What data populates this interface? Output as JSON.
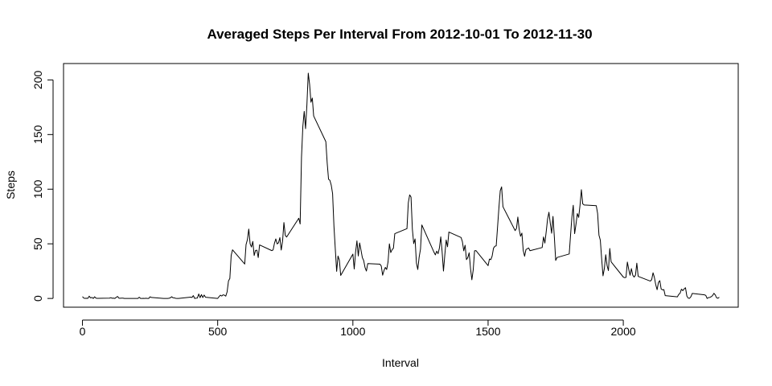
{
  "chart_data": {
    "type": "line",
    "title": "Averaged Steps Per Interval From  2012-10-01  To  2012-11-30",
    "xlabel": "Interval",
    "ylabel": "Steps",
    "xlim": [
      -70,
      2425
    ],
    "ylim": [
      -8,
      215
    ],
    "xticks": [
      0,
      500,
      1000,
      1500,
      2000
    ],
    "yticks": [
      0,
      50,
      100,
      150,
      200
    ],
    "grid": false,
    "series": [
      {
        "color": "#000000",
        "points": [
          [
            0,
            1.7
          ],
          [
            5,
            0.3
          ],
          [
            10,
            0.1
          ],
          [
            15,
            0.2
          ],
          [
            20,
            0.1
          ],
          [
            25,
            2.1
          ],
          [
            30,
            0.5
          ],
          [
            35,
            0.9
          ],
          [
            40,
            0
          ],
          [
            45,
            1.5
          ],
          [
            50,
            0.3
          ],
          [
            55,
            0.1
          ],
          [
            100,
            0.3
          ],
          [
            105,
            0.7
          ],
          [
            110,
            0.2
          ],
          [
            115,
            0.3
          ],
          [
            120,
            0
          ],
          [
            125,
            1.1
          ],
          [
            130,
            1.8
          ],
          [
            135,
            0.2
          ],
          [
            140,
            0.2
          ],
          [
            145,
            0.3
          ],
          [
            150,
            0.3
          ],
          [
            155,
            0
          ],
          [
            200,
            0
          ],
          [
            205,
            0
          ],
          [
            210,
            1.1
          ],
          [
            215,
            0
          ],
          [
            220,
            0
          ],
          [
            225,
            0.1
          ],
          [
            230,
            0
          ],
          [
            235,
            0.2
          ],
          [
            240,
            0
          ],
          [
            245,
            0
          ],
          [
            250,
            1.5
          ],
          [
            255,
            0.9
          ],
          [
            300,
            0
          ],
          [
            305,
            0
          ],
          [
            310,
            0
          ],
          [
            315,
            0
          ],
          [
            320,
            0.2
          ],
          [
            325,
            0.6
          ],
          [
            330,
            1.6
          ],
          [
            335,
            0.6
          ],
          [
            340,
            0.5
          ],
          [
            345,
            0.1
          ],
          [
            350,
            0
          ],
          [
            355,
            0
          ],
          [
            400,
            1.2
          ],
          [
            405,
            0.9
          ],
          [
            410,
            2.6
          ],
          [
            415,
            0
          ],
          [
            420,
            0.3
          ],
          [
            425,
            0.4
          ],
          [
            430,
            4.1
          ],
          [
            435,
            0.7
          ],
          [
            440,
            3.5
          ],
          [
            445,
            0.8
          ],
          [
            450,
            3.1
          ],
          [
            455,
            1.1
          ],
          [
            500,
            0
          ],
          [
            505,
            1.6
          ],
          [
            510,
            3
          ],
          [
            515,
            2.2
          ],
          [
            520,
            3.3
          ],
          [
            525,
            3
          ],
          [
            530,
            2.1
          ],
          [
            535,
            6.1
          ],
          [
            540,
            16
          ],
          [
            545,
            18.3
          ],
          [
            550,
            39.5
          ],
          [
            555,
            44.5
          ],
          [
            600,
            31.5
          ],
          [
            605,
            49.3
          ],
          [
            610,
            53.8
          ],
          [
            615,
            63.5
          ],
          [
            620,
            50
          ],
          [
            625,
            47.1
          ],
          [
            630,
            52.2
          ],
          [
            635,
            39.3
          ],
          [
            640,
            44
          ],
          [
            645,
            44.2
          ],
          [
            650,
            37.4
          ],
          [
            655,
            49
          ],
          [
            700,
            43.8
          ],
          [
            705,
            44.4
          ],
          [
            710,
            50.5
          ],
          [
            715,
            54.5
          ],
          [
            720,
            49.9
          ],
          [
            725,
            51
          ],
          [
            730,
            55.7
          ],
          [
            735,
            44.3
          ],
          [
            740,
            52.3
          ],
          [
            745,
            69.5
          ],
          [
            750,
            57.8
          ],
          [
            755,
            56.2
          ],
          [
            800,
            73.4
          ],
          [
            805,
            68.2
          ],
          [
            810,
            129.4
          ],
          [
            815,
            157.5
          ],
          [
            820,
            171.2
          ],
          [
            825,
            155.4
          ],
          [
            830,
            177.3
          ],
          [
            835,
            206.2
          ],
          [
            840,
            195.9
          ],
          [
            845,
            179.6
          ],
          [
            850,
            183.4
          ],
          [
            855,
            167
          ],
          [
            900,
            143.5
          ],
          [
            905,
            124
          ],
          [
            910,
            109.1
          ],
          [
            915,
            108.1
          ],
          [
            920,
            103.7
          ],
          [
            925,
            95.9
          ],
          [
            930,
            66.2
          ],
          [
            935,
            45.2
          ],
          [
            940,
            24.8
          ],
          [
            945,
            38.8
          ],
          [
            950,
            35
          ],
          [
            955,
            21.1
          ],
          [
            1000,
            40.6
          ],
          [
            1005,
            27
          ],
          [
            1010,
            42.4
          ],
          [
            1015,
            52.7
          ],
          [
            1020,
            38.9
          ],
          [
            1025,
            50.8
          ],
          [
            1030,
            44.3
          ],
          [
            1035,
            37.4
          ],
          [
            1040,
            34.7
          ],
          [
            1045,
            28.3
          ],
          [
            1050,
            25.1
          ],
          [
            1055,
            31.9
          ],
          [
            1100,
            31.4
          ],
          [
            1105,
            29.7
          ],
          [
            1110,
            21.3
          ],
          [
            1115,
            25.5
          ],
          [
            1120,
            28.4
          ],
          [
            1125,
            26.5
          ],
          [
            1130,
            33.4
          ],
          [
            1135,
            50
          ],
          [
            1140,
            42
          ],
          [
            1145,
            44.6
          ],
          [
            1150,
            46
          ],
          [
            1155,
            59.3
          ],
          [
            1200,
            63.9
          ],
          [
            1205,
            87.6
          ],
          [
            1210,
            94.8
          ],
          [
            1215,
            92.8
          ],
          [
            1220,
            63.4
          ],
          [
            1225,
            50.2
          ],
          [
            1230,
            54.5
          ],
          [
            1235,
            32.4
          ],
          [
            1240,
            26.5
          ],
          [
            1245,
            37.7
          ],
          [
            1250,
            45.1
          ],
          [
            1255,
            67.3
          ],
          [
            1300,
            42.3
          ],
          [
            1305,
            39.9
          ],
          [
            1310,
            43.3
          ],
          [
            1315,
            40.98
          ],
          [
            1320,
            46.2
          ],
          [
            1325,
            56.4
          ],
          [
            1330,
            42.8
          ],
          [
            1335,
            25.1
          ],
          [
            1340,
            39.97
          ],
          [
            1345,
            53.5
          ],
          [
            1350,
            47.3
          ],
          [
            1355,
            60.8
          ],
          [
            1400,
            55.8
          ],
          [
            1405,
            51.96
          ],
          [
            1410,
            43.6
          ],
          [
            1415,
            48.7
          ],
          [
            1420,
            35.5
          ],
          [
            1425,
            37.5
          ],
          [
            1430,
            41.8
          ],
          [
            1435,
            27.5
          ],
          [
            1440,
            17.1
          ],
          [
            1445,
            26.1
          ],
          [
            1450,
            43.6
          ],
          [
            1455,
            43.8
          ],
          [
            1500,
            30
          ],
          [
            1505,
            36.1
          ],
          [
            1510,
            35.5
          ],
          [
            1515,
            38.8
          ],
          [
            1520,
            45.96
          ],
          [
            1525,
            47.8
          ],
          [
            1530,
            48.1
          ],
          [
            1535,
            65.3
          ],
          [
            1540,
            82.9
          ],
          [
            1545,
            98.7
          ],
          [
            1550,
            102.1
          ],
          [
            1555,
            83.96
          ],
          [
            1600,
            62.1
          ],
          [
            1605,
            64.1
          ],
          [
            1610,
            74.5
          ],
          [
            1615,
            63.2
          ],
          [
            1620,
            56.9
          ],
          [
            1625,
            59.8
          ],
          [
            1630,
            43.9
          ],
          [
            1635,
            38.6
          ],
          [
            1640,
            44.7
          ],
          [
            1645,
            45.5
          ],
          [
            1650,
            46.2
          ],
          [
            1655,
            43.7
          ],
          [
            1700,
            46.6
          ],
          [
            1705,
            56.3
          ],
          [
            1710,
            50.7
          ],
          [
            1715,
            61.2
          ],
          [
            1720,
            72.7
          ],
          [
            1725,
            78.9
          ],
          [
            1730,
            68.9
          ],
          [
            1735,
            59.7
          ],
          [
            1740,
            75.1
          ],
          [
            1745,
            56.5
          ],
          [
            1750,
            34.8
          ],
          [
            1755,
            37.5
          ],
          [
            1800,
            40.7
          ],
          [
            1805,
            58
          ],
          [
            1810,
            74.7
          ],
          [
            1815,
            85.3
          ],
          [
            1820,
            59.3
          ],
          [
            1825,
            67.8
          ],
          [
            1830,
            77.7
          ],
          [
            1835,
            74.2
          ],
          [
            1840,
            85.3
          ],
          [
            1845,
            99.5
          ],
          [
            1850,
            86.6
          ],
          [
            1855,
            85.6
          ],
          [
            1900,
            84.9
          ],
          [
            1905,
            77.8
          ],
          [
            1910,
            58
          ],
          [
            1915,
            53.4
          ],
          [
            1920,
            36.3
          ],
          [
            1925,
            20.7
          ],
          [
            1930,
            27.4
          ],
          [
            1935,
            40
          ],
          [
            1940,
            30.2
          ],
          [
            1945,
            25.5
          ],
          [
            1950,
            45.7
          ],
          [
            1955,
            33.5
          ],
          [
            2000,
            19.6
          ],
          [
            2005,
            19
          ],
          [
            2010,
            19.3
          ],
          [
            2015,
            33.3
          ],
          [
            2020,
            26.8
          ],
          [
            2025,
            21.2
          ],
          [
            2030,
            27.3
          ],
          [
            2035,
            21.3
          ],
          [
            2040,
            19.5
          ],
          [
            2045,
            21.3
          ],
          [
            2050,
            32.3
          ],
          [
            2055,
            20.2
          ],
          [
            2100,
            15.9
          ],
          [
            2105,
            17.2
          ],
          [
            2110,
            23.5
          ],
          [
            2115,
            19.2
          ],
          [
            2120,
            12.5
          ],
          [
            2125,
            8
          ],
          [
            2130,
            14.7
          ],
          [
            2135,
            16.3
          ],
          [
            2140,
            8.7
          ],
          [
            2145,
            7.8
          ],
          [
            2150,
            8.1
          ],
          [
            2155,
            2.6
          ],
          [
            2200,
            1.5
          ],
          [
            2205,
            3.7
          ],
          [
            2210,
            4.8
          ],
          [
            2215,
            8.5
          ],
          [
            2220,
            7.1
          ],
          [
            2225,
            8.7
          ],
          [
            2230,
            9.8
          ],
          [
            2235,
            2.2
          ],
          [
            2240,
            0.3
          ],
          [
            2245,
            0.1
          ],
          [
            2250,
            1.6
          ],
          [
            2255,
            4.6
          ],
          [
            2300,
            3.3
          ],
          [
            2305,
            2.8
          ],
          [
            2310,
            0
          ],
          [
            2315,
            0.8
          ],
          [
            2320,
            0.96
          ],
          [
            2325,
            1.6
          ],
          [
            2330,
            2.6
          ],
          [
            2335,
            4.7
          ],
          [
            2340,
            3.3
          ],
          [
            2345,
            0.6
          ],
          [
            2350,
            0.2
          ],
          [
            2355,
            1.1
          ]
        ]
      }
    ]
  }
}
